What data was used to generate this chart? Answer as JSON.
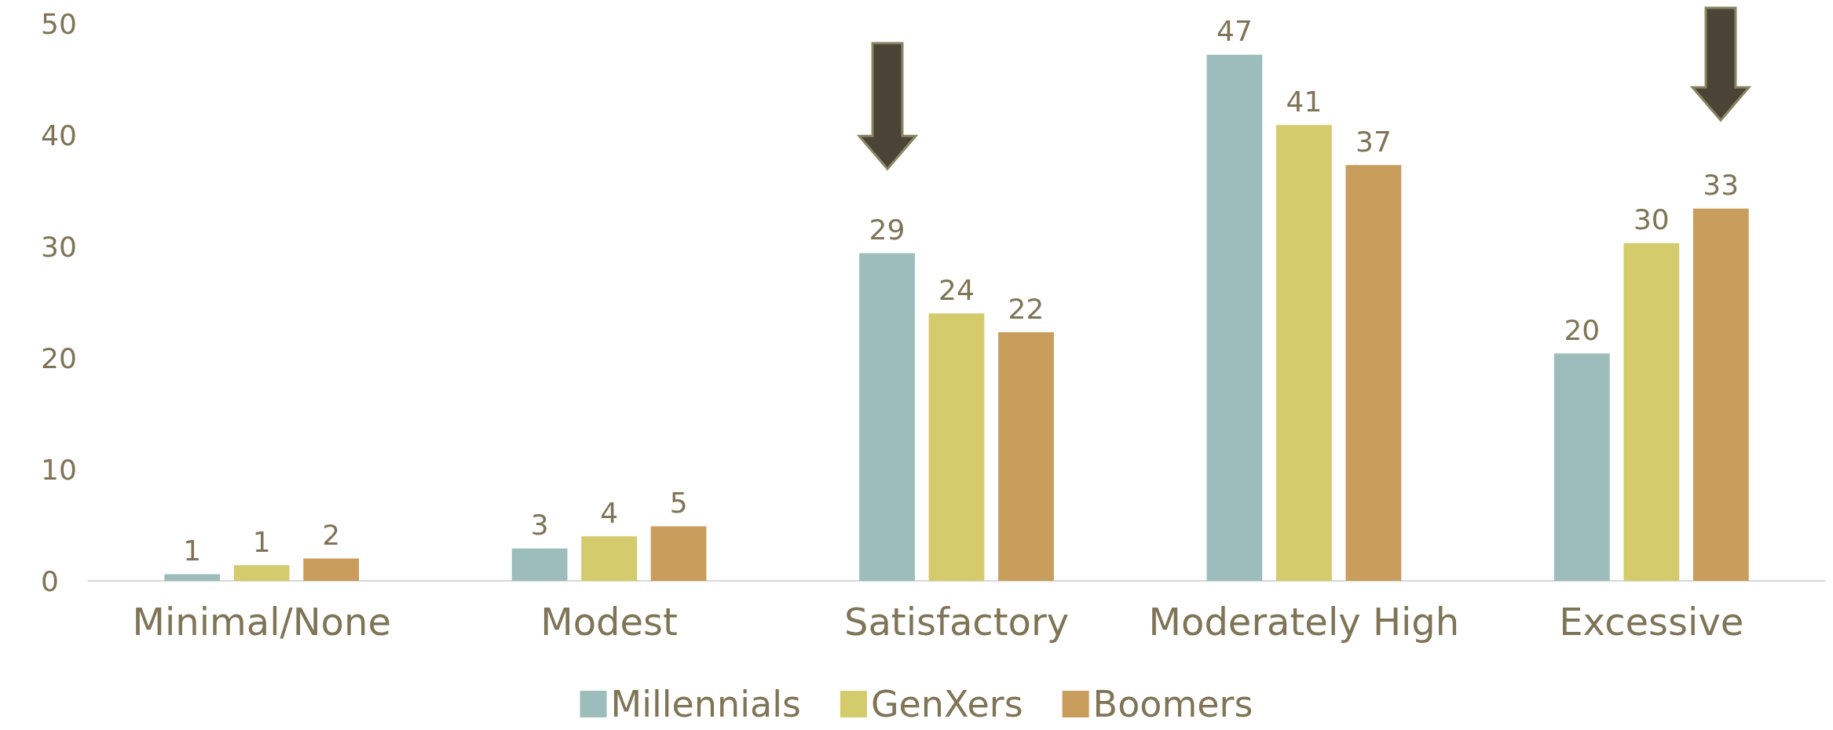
{
  "chart_data": {
    "type": "bar",
    "categories": [
      "Minimal/None",
      "Modest",
      "Satisfactory",
      "Moderately High",
      "Excessive"
    ],
    "series": [
      {
        "name": "Millennials",
        "color": "#9dbdbc",
        "values": [
          0.6,
          2.9,
          29.4,
          47.2,
          20.4
        ],
        "value_labels": [
          "1",
          "3",
          "29",
          "47",
          "20"
        ]
      },
      {
        "name": "GenXers",
        "color": "#d3cb6c",
        "values": [
          1.4,
          4.0,
          24.0,
          40.9,
          30.3
        ],
        "value_labels": [
          "1",
          "4",
          "24",
          "41",
          "30"
        ]
      },
      {
        "name": "Boomers",
        "color": "#c99d5c",
        "values": [
          2.0,
          4.9,
          22.3,
          37.3,
          33.4
        ],
        "value_labels": [
          "2",
          "5",
          "22",
          "37",
          "33"
        ]
      }
    ],
    "ylim": [
      0,
      50
    ],
    "yticks": [
      0,
      10,
      20,
      30,
      40,
      50
    ],
    "grid": false,
    "legend": "bottom"
  }
}
